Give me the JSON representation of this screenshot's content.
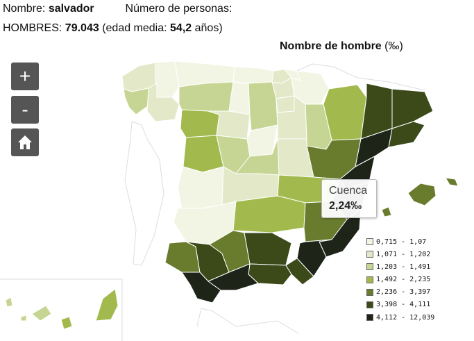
{
  "header": {
    "name_label": "Nombre:",
    "name_value": "salvador",
    "persons_label": "Número de personas:",
    "men_label": "HOMBRES:",
    "men_value": "79.043",
    "age_open": "(edad media:",
    "age_value": "54,2",
    "age_unit": "años)"
  },
  "map": {
    "title": "Nombre de hombre",
    "title_unit": "(‰)",
    "controls": {
      "zoom_in": "+",
      "zoom_out": "-",
      "home_icon": "home-icon"
    },
    "tooltip": {
      "name": "Cuenca",
      "value": "2,24‰"
    },
    "colors": [
      "#f3f5e4",
      "#e3e9c8",
      "#c6d593",
      "#a2ba4d",
      "#697c2e",
      "#3c4a1a",
      "#1f2419"
    ],
    "legend": [
      {
        "label": "0,715 - 1,07",
        "color": "#f3f5e4"
      },
      {
        "label": "1,071 - 1,202",
        "color": "#e3e9c8"
      },
      {
        "label": "1,203 - 1,491",
        "color": "#c6d593"
      },
      {
        "label": "1,492 - 2,235",
        "color": "#a2ba4d"
      },
      {
        "label": "2,236 - 3,397",
        "color": "#697c2e"
      },
      {
        "label": "3,398 - 4,111",
        "color": "#3c4a1a"
      },
      {
        "label": "4,112 - 12,039",
        "color": "#1f2419"
      }
    ]
  }
}
